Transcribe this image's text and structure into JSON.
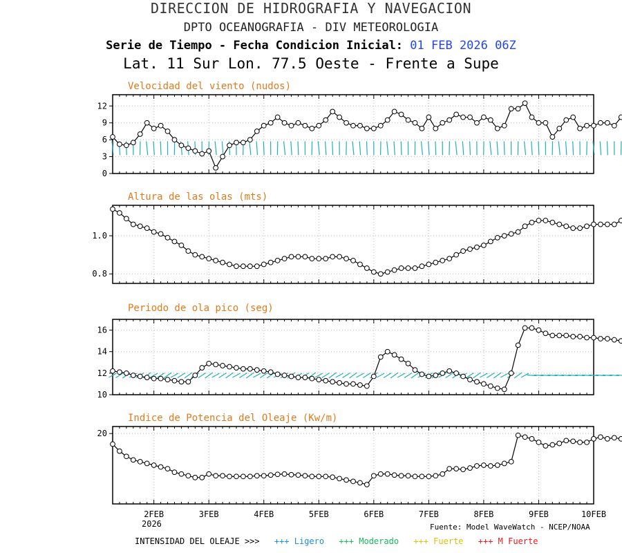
{
  "header": {
    "line1": "DIRECCION DE HIDROGRAFIA Y NAVEGACION",
    "line2": "DPTO OCEANOGRAFIA - DIV METEOROLOGIA",
    "line3_label": "Serie de Tiempo - Fecha Condicion Inicial:",
    "line3_date": "01 FEB 2026 06Z",
    "line4": "Lat. 11 Sur  Lon. 77.5 Oeste - Frente a Supe"
  },
  "footer": {
    "source": "Fuente: Model WaveWatch - NCEP/NOAA",
    "year": "2026",
    "legend_title": "INTENSIDAD DEL OLEAJE >>>",
    "legend": [
      {
        "label": "+++ Ligero",
        "color": "#1a8fe0"
      },
      {
        "label": "+++ Moderado",
        "color": "#18b85a"
      },
      {
        "label": "+++ Fuerte",
        "color": "#e8d21a"
      },
      {
        "label": "+++ M Fuerte",
        "color": "#e81a1a"
      }
    ]
  },
  "colors": {
    "arrows": "#1fb0b8",
    "line": "#000000",
    "title": "#e07a1a"
  },
  "chart_data": [
    {
      "type": "line",
      "title": "Velocidad del viento (nudos)",
      "x_start": 1.25,
      "x_step": 0.125,
      "xlim": [
        1.25,
        10
      ],
      "ylim": [
        0,
        14
      ],
      "yticks": [
        0,
        3,
        6,
        9,
        12
      ],
      "values": [
        6.5,
        5.2,
        5,
        5.5,
        7,
        9,
        8,
        8.5,
        7.5,
        6,
        5,
        4.5,
        4,
        3.5,
        4,
        1,
        3,
        5,
        5.5,
        5.5,
        6,
        7.5,
        8.5,
        9,
        10,
        9,
        8.5,
        9,
        8.5,
        8,
        8.5,
        9.5,
        11,
        10,
        9,
        8.5,
        8.5,
        8,
        8,
        8.5,
        9.5,
        11,
        10.5,
        9.5,
        9,
        8,
        10,
        8,
        9,
        9.5,
        10.5,
        10,
        10,
        9,
        10,
        9.5,
        8,
        8.5,
        11.5,
        11.5,
        12.5,
        10,
        9,
        9,
        6.5,
        8,
        9.5,
        10,
        8,
        8.5,
        8.5,
        9,
        9,
        8.5,
        10,
        11,
        10
      ],
      "arrows": true
    },
    {
      "type": "line",
      "title": "Altura de las olas (mts)",
      "x_start": 1.25,
      "x_step": 0.125,
      "xlim": [
        1.25,
        10
      ],
      "ylim": [
        0.75,
        1.16
      ],
      "yticks": [
        0.8,
        1.0
      ],
      "values": [
        1.14,
        1.12,
        1.09,
        1.06,
        1.05,
        1.04,
        1.02,
        1.01,
        0.99,
        0.97,
        0.95,
        0.92,
        0.9,
        0.89,
        0.88,
        0.87,
        0.86,
        0.85,
        0.84,
        0.84,
        0.84,
        0.84,
        0.85,
        0.86,
        0.87,
        0.88,
        0.89,
        0.89,
        0.89,
        0.88,
        0.88,
        0.88,
        0.89,
        0.89,
        0.88,
        0.87,
        0.85,
        0.83,
        0.81,
        0.8,
        0.81,
        0.82,
        0.83,
        0.83,
        0.83,
        0.84,
        0.85,
        0.86,
        0.87,
        0.88,
        0.9,
        0.92,
        0.93,
        0.94,
        0.95,
        0.97,
        0.99,
        1.0,
        1.01,
        1.02,
        1.05,
        1.07,
        1.08,
        1.08,
        1.07,
        1.06,
        1.05,
        1.04,
        1.04,
        1.05,
        1.06,
        1.06,
        1.06,
        1.06,
        1.08,
        1.1,
        1.1,
        1.11,
        1.11
      ],
      "arrows": false
    },
    {
      "type": "line",
      "title": "Periodo de ola pico (seg)",
      "x_start": 1.25,
      "x_step": 0.125,
      "xlim": [
        1.25,
        10
      ],
      "ylim": [
        10,
        17
      ],
      "yticks": [
        10,
        12,
        14,
        16
      ],
      "values": [
        12.2,
        12.1,
        12,
        11.8,
        11.7,
        11.6,
        11.5,
        11.5,
        11.4,
        11.3,
        11.2,
        11.2,
        11.8,
        12.5,
        12.9,
        12.8,
        12.7,
        12.6,
        12.5,
        12.4,
        12.4,
        12.3,
        12.2,
        12.1,
        11.9,
        11.8,
        11.7,
        11.6,
        11.6,
        11.5,
        11.4,
        11.3,
        11.2,
        11.1,
        11.0,
        11.0,
        10.9,
        10.8,
        11.7,
        13.5,
        14.0,
        13.7,
        13.3,
        12.9,
        12.3,
        11.9,
        11.7,
        11.8,
        12.0,
        12.2,
        12.0,
        11.7,
        11.4,
        11.2,
        11.0,
        10.8,
        10.6,
        10.5,
        12.0,
        14.6,
        16.2,
        16.2,
        16.0,
        15.7,
        15.5,
        15.5,
        15.5,
        15.4,
        15.4,
        15.3,
        15.3,
        15.2,
        15.2,
        15.1,
        15.0,
        14.8,
        14.5
      ],
      "arrows": true
    },
    {
      "type": "line",
      "title": "Indice de Potencia del Oleaje (Kw/m)",
      "x_start": 1.25,
      "x_step": 0.125,
      "xlim": [
        1.25,
        10
      ],
      "ylim": [
        0,
        22
      ],
      "yticks": [
        20
      ],
      "values": [
        17.0,
        15.0,
        13.5,
        12.5,
        12.0,
        11.5,
        11.0,
        10.5,
        10.0,
        9.0,
        8.5,
        8.0,
        7.5,
        7.5,
        8.5,
        8.0,
        8.0,
        7.8,
        7.8,
        7.8,
        7.8,
        8.0,
        8.0,
        8.2,
        8.4,
        8.5,
        8.3,
        8.2,
        8.0,
        7.8,
        7.8,
        7.8,
        7.6,
        7.2,
        6.8,
        6.4,
        6.0,
        5.5,
        8.0,
        8.5,
        8.5,
        8.2,
        8.0,
        8.0,
        7.8,
        7.8,
        7.8,
        8.0,
        8.5,
        10.0,
        10.0,
        9.8,
        10.2,
        10.8,
        11.0,
        10.8,
        11.0,
        11.5,
        12.0,
        19.5,
        19.0,
        18.5,
        17.5,
        16.5,
        16.8,
        17.2,
        18.0,
        17.8,
        17.5,
        17.5,
        18.5,
        19.0,
        18.5,
        18.8,
        18.5
      ],
      "arrows": false
    }
  ],
  "x_axis": {
    "labels": [
      "2FEB",
      "3FEB",
      "4FEB",
      "5FEB",
      "6FEB",
      "7FEB",
      "8FEB",
      "9FEB",
      "10FEB"
    ],
    "values": [
      2,
      3,
      4,
      5,
      6,
      7,
      8,
      9,
      10
    ]
  }
}
